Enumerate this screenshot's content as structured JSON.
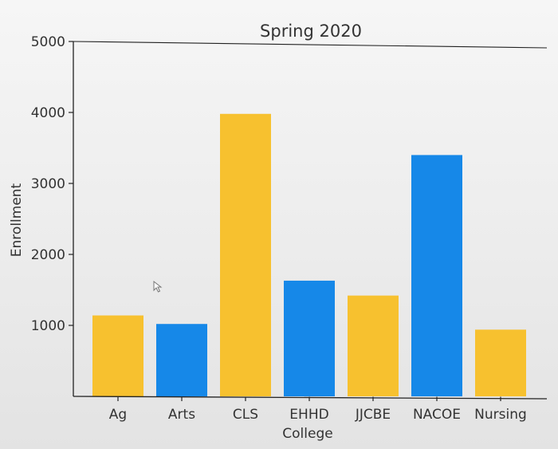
{
  "chart_data": {
    "type": "bar",
    "title": "Spring 2020",
    "xlabel": "College",
    "ylabel": "Enrollment",
    "categories": [
      "Ag",
      "Arts",
      "CLS",
      "EHHD",
      "JJCBE",
      "NACOE",
      "Nursing"
    ],
    "values": [
      1140,
      1020,
      3980,
      1630,
      1420,
      3400,
      940
    ],
    "bar_colors": [
      "#f7c12f",
      "#1688e8",
      "#f7c12f",
      "#1688e8",
      "#f7c12f",
      "#1688e8",
      "#f7c12f"
    ],
    "ylim": [
      0,
      5000
    ],
    "yticks": [
      1000,
      2000,
      3000,
      4000,
      5000
    ],
    "grid": false,
    "legend": "none"
  }
}
